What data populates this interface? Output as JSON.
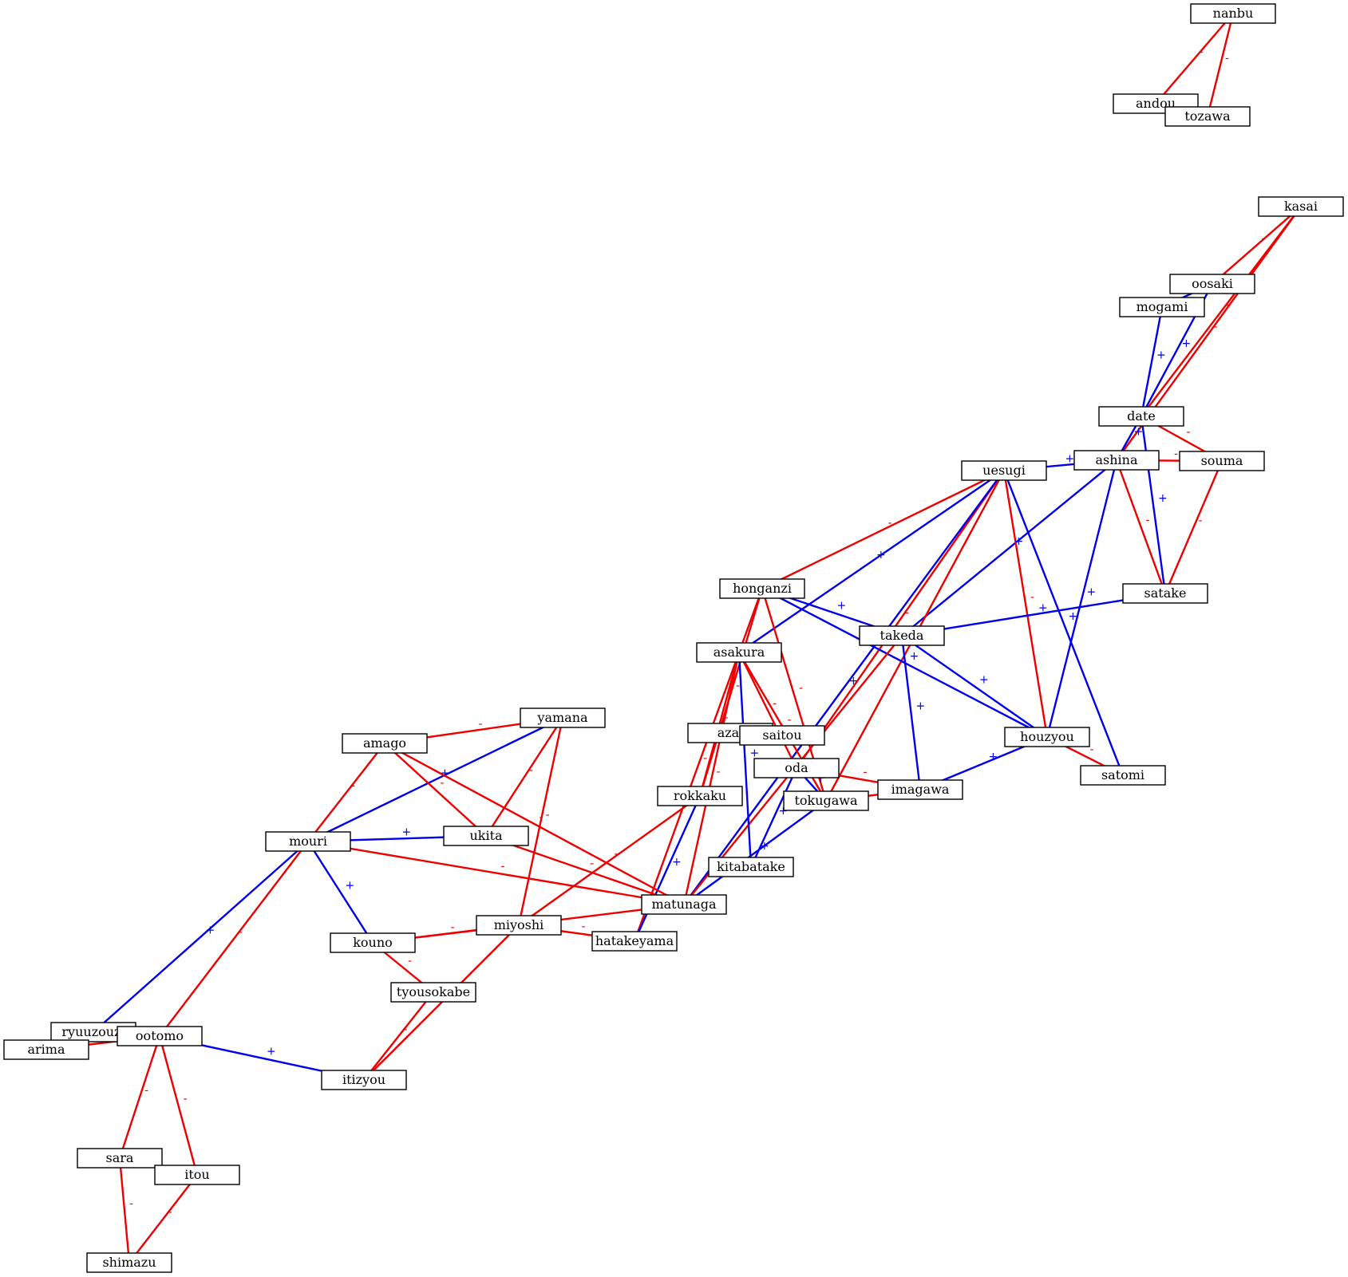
{
  "colors": {
    "positive": "#0000ee",
    "negative": "#ee0000"
  },
  "signs": {
    "positive": "+",
    "negative": "-"
  },
  "nodes": [
    {
      "id": "nanbu",
      "label": "nanbu"
    },
    {
      "id": "andou",
      "label": "andou"
    },
    {
      "id": "tozawa",
      "label": "tozawa"
    },
    {
      "id": "kasai",
      "label": "kasai"
    },
    {
      "id": "oosaki",
      "label": "oosaki"
    },
    {
      "id": "mogami",
      "label": "mogami"
    },
    {
      "id": "date",
      "label": "date"
    },
    {
      "id": "ashina",
      "label": "ashina"
    },
    {
      "id": "souma",
      "label": "souma"
    },
    {
      "id": "uesugi",
      "label": "uesugi"
    },
    {
      "id": "satake",
      "label": "satake"
    },
    {
      "id": "honganzi",
      "label": "honganzi"
    },
    {
      "id": "takeda",
      "label": "takeda"
    },
    {
      "id": "asakura",
      "label": "asakura"
    },
    {
      "id": "houzyou",
      "label": "houzyou"
    },
    {
      "id": "satomi",
      "label": "satomi"
    },
    {
      "id": "azai",
      "label": "azai"
    },
    {
      "id": "saitou",
      "label": "saitou"
    },
    {
      "id": "oda",
      "label": "oda"
    },
    {
      "id": "imagawa",
      "label": "imagawa"
    },
    {
      "id": "tokugawa",
      "label": "tokugawa"
    },
    {
      "id": "rokkaku",
      "label": "rokkaku"
    },
    {
      "id": "yamana",
      "label": "yamana"
    },
    {
      "id": "amago",
      "label": "amago"
    },
    {
      "id": "ukita",
      "label": "ukita"
    },
    {
      "id": "mouri",
      "label": "mouri"
    },
    {
      "id": "kitabatake",
      "label": "kitabatake"
    },
    {
      "id": "matunaga",
      "label": "matunaga"
    },
    {
      "id": "miyoshi",
      "label": "miyoshi"
    },
    {
      "id": "hatakeyama",
      "label": "hatakeyama"
    },
    {
      "id": "kouno",
      "label": "kouno"
    },
    {
      "id": "tyousokabe",
      "label": "tyousokabe"
    },
    {
      "id": "ryuuzouzi",
      "label": "ryuuzouzi"
    },
    {
      "id": "arima",
      "label": "arima"
    },
    {
      "id": "ootomo",
      "label": "ootomo"
    },
    {
      "id": "itizyou",
      "label": "itizyou"
    },
    {
      "id": "sara",
      "label": "sara"
    },
    {
      "id": "itou",
      "label": "itou"
    },
    {
      "id": "shimazu",
      "label": "shimazu"
    }
  ],
  "edges": [
    {
      "source": "nanbu",
      "target": "andou",
      "sign": "negative"
    },
    {
      "source": "nanbu",
      "target": "tozawa",
      "sign": "negative"
    },
    {
      "source": "kasai",
      "target": "oosaki",
      "sign": "negative"
    },
    {
      "source": "kasai",
      "target": "date",
      "sign": "negative"
    },
    {
      "source": "kasai",
      "target": "ashina",
      "sign": "negative"
    },
    {
      "source": "oosaki",
      "target": "mogami",
      "sign": "positive"
    },
    {
      "source": "oosaki",
      "target": "date",
      "sign": "positive"
    },
    {
      "source": "mogami",
      "target": "date",
      "sign": "positive"
    },
    {
      "source": "date",
      "target": "ashina",
      "sign": "positive"
    },
    {
      "source": "date",
      "target": "souma",
      "sign": "negative"
    },
    {
      "source": "date",
      "target": "satake",
      "sign": "positive"
    },
    {
      "source": "ashina",
      "target": "souma",
      "sign": "negative"
    },
    {
      "source": "ashina",
      "target": "uesugi",
      "sign": "positive"
    },
    {
      "source": "ashina",
      "target": "satake",
      "sign": "negative"
    },
    {
      "source": "ashina",
      "target": "takeda",
      "sign": "positive"
    },
    {
      "source": "ashina",
      "target": "houzyou",
      "sign": "positive"
    },
    {
      "source": "souma",
      "target": "satake",
      "sign": "negative"
    },
    {
      "source": "uesugi",
      "target": "honganzi",
      "sign": "negative"
    },
    {
      "source": "uesugi",
      "target": "asakura",
      "sign": "positive"
    },
    {
      "source": "uesugi",
      "target": "houzyou",
      "sign": "negative"
    },
    {
      "source": "uesugi",
      "target": "satomi",
      "sign": "positive"
    },
    {
      "source": "uesugi",
      "target": "oda",
      "sign": "negative"
    },
    {
      "source": "uesugi",
      "target": "matunaga",
      "sign": "positive"
    },
    {
      "source": "uesugi",
      "target": "tokugawa",
      "sign": "negative"
    },
    {
      "source": "satake",
      "target": "takeda",
      "sign": "positive"
    },
    {
      "source": "honganzi",
      "target": "takeda",
      "sign": "positive"
    },
    {
      "source": "honganzi",
      "target": "houzyou",
      "sign": "positive"
    },
    {
      "source": "honganzi",
      "target": "tokugawa",
      "sign": "negative"
    },
    {
      "source": "honganzi",
      "target": "rokkaku",
      "sign": "negative"
    },
    {
      "source": "honganzi",
      "target": "hatakeyama",
      "sign": "negative"
    },
    {
      "source": "takeda",
      "target": "houzyou",
      "sign": "positive"
    },
    {
      "source": "takeda",
      "target": "imagawa",
      "sign": "positive"
    },
    {
      "source": "takeda",
      "target": "matunaga",
      "sign": "negative"
    },
    {
      "source": "asakura",
      "target": "tokugawa",
      "sign": "negative"
    },
    {
      "source": "asakura",
      "target": "rokkaku",
      "sign": "negative"
    },
    {
      "source": "asakura",
      "target": "oda",
      "sign": "negative"
    },
    {
      "source": "asakura",
      "target": "matunaga",
      "sign": "negative"
    },
    {
      "source": "asakura",
      "target": "kitabatake",
      "sign": "positive"
    },
    {
      "source": "houzyou",
      "target": "imagawa",
      "sign": "positive"
    },
    {
      "source": "houzyou",
      "target": "satomi",
      "sign": "negative"
    },
    {
      "source": "oda",
      "target": "imagawa",
      "sign": "negative"
    },
    {
      "source": "oda",
      "target": "tokugawa",
      "sign": "positive"
    },
    {
      "source": "oda",
      "target": "kitabatake",
      "sign": "positive"
    },
    {
      "source": "imagawa",
      "target": "tokugawa",
      "sign": "negative"
    },
    {
      "source": "tokugawa",
      "target": "matunaga",
      "sign": "positive"
    },
    {
      "source": "rokkaku",
      "target": "miyoshi",
      "sign": "negative"
    },
    {
      "source": "rokkaku",
      "target": "hatakeyama",
      "sign": "positive"
    },
    {
      "source": "yamana",
      "target": "amago",
      "sign": "negative"
    },
    {
      "source": "yamana",
      "target": "mouri",
      "sign": "positive"
    },
    {
      "source": "yamana",
      "target": "ukita",
      "sign": "negative"
    },
    {
      "source": "yamana",
      "target": "miyoshi",
      "sign": "negative"
    },
    {
      "source": "amago",
      "target": "mouri",
      "sign": "negative"
    },
    {
      "source": "amago",
      "target": "ukita",
      "sign": "negative"
    },
    {
      "source": "amago",
      "target": "matunaga",
      "sign": "negative"
    },
    {
      "source": "ukita",
      "target": "mouri",
      "sign": "positive"
    },
    {
      "source": "ukita",
      "target": "matunaga",
      "sign": "negative"
    },
    {
      "source": "mouri",
      "target": "matunaga",
      "sign": "negative"
    },
    {
      "source": "mouri",
      "target": "kouno",
      "sign": "positive"
    },
    {
      "source": "mouri",
      "target": "ryuuzouzi",
      "sign": "positive"
    },
    {
      "source": "mouri",
      "target": "ootomo",
      "sign": "negative"
    },
    {
      "source": "matunaga",
      "target": "kouno",
      "sign": "negative"
    },
    {
      "source": "miyoshi",
      "target": "kouno",
      "sign": "negative"
    },
    {
      "source": "miyoshi",
      "target": "hatakeyama",
      "sign": "negative"
    },
    {
      "source": "miyoshi",
      "target": "itizyou",
      "sign": "negative"
    },
    {
      "source": "kouno",
      "target": "tyousokabe",
      "sign": "negative"
    },
    {
      "source": "tyousokabe",
      "target": "itizyou",
      "sign": "negative"
    },
    {
      "source": "ootomo",
      "target": "arima",
      "sign": "negative"
    },
    {
      "source": "ootomo",
      "target": "itizyou",
      "sign": "positive"
    },
    {
      "source": "ootomo",
      "target": "sara",
      "sign": "negative"
    },
    {
      "source": "ootomo",
      "target": "itou",
      "sign": "negative"
    },
    {
      "source": "sara",
      "target": "shimazu",
      "sign": "negative"
    },
    {
      "source": "itou",
      "target": "shimazu",
      "sign": "negative"
    }
  ]
}
